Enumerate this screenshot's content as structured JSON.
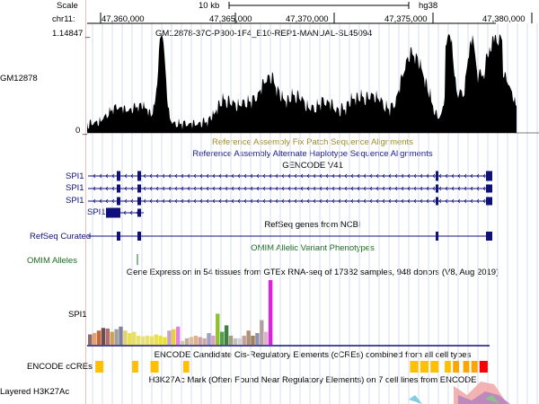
{
  "ruler": {
    "scale_label": "Scale",
    "scale_bar_text": "10 kb",
    "assembly": "hg38",
    "chrom_label": "chr11:",
    "ticks": [
      {
        "label": "47,360,000"
      },
      {
        "label": "47,365,000"
      },
      {
        "label": "47,370,000"
      },
      {
        "label": "47,375,000"
      },
      {
        "label": "47,380,000"
      }
    ]
  },
  "signal_track": {
    "max_label": "1.14847 _",
    "zero_label": "0 _",
    "name": "GM12878",
    "title": "GM12878-37C-P300-1F4_E10-REP1-MANUAL-SL45094",
    "color": "#000000"
  },
  "patch_tracks": {
    "fix_patch_title": "Reference Assembly Fix Patch Sequence Alignments",
    "alt_haplotype_title": "Reference Assembly Alternate Haplotype Sequence Alignments",
    "fix_patch_color": "#a08a2a",
    "alt_color": "#1a1a8c"
  },
  "gencode": {
    "title": "GENCODE V41",
    "transcript_labels": [
      "SPI1",
      "SPI1",
      "SPI1",
      "SPI1"
    ],
    "color": "#10107a"
  },
  "refseq": {
    "title": "RefSeq genes from NCBI",
    "track_label": "RefSeq Curated",
    "color": "#10107a"
  },
  "omim": {
    "title": "OMIM Allelic Variant Phenotypes",
    "track_label": "OMIM Alleles",
    "color": "#1f6b1f"
  },
  "gtex": {
    "title": "Gene Expression in 54 tissues from GTEx RNA-seq of 17382 samples, 948 donors (V8, Aug 2019)",
    "gene_label": "SPI1",
    "bars": [
      {
        "value": 0.16,
        "color": "#8c6c6c"
      },
      {
        "value": 0.18,
        "color": "#e8a06c"
      },
      {
        "value": 0.22,
        "color": "#c06a3c"
      },
      {
        "value": 0.26,
        "color": "#6c4c4c"
      },
      {
        "value": 0.25,
        "color": "#b07070"
      },
      {
        "value": 0.2,
        "color": "#d0a050"
      },
      {
        "value": 0.24,
        "color": "#a0a0a0"
      },
      {
        "value": 0.28,
        "color": "#8080a0"
      },
      {
        "value": 0.22,
        "color": "#e0d070"
      },
      {
        "value": 0.18,
        "color": "#e8e050"
      },
      {
        "value": 0.2,
        "color": "#e8e060"
      },
      {
        "value": 0.14,
        "color": "#e8e070"
      },
      {
        "value": 0.13,
        "color": "#e8e080"
      },
      {
        "value": 0.14,
        "color": "#e8e070"
      },
      {
        "value": 0.13,
        "color": "#e8e060"
      },
      {
        "value": 0.16,
        "color": "#e8e050"
      },
      {
        "value": 0.14,
        "color": "#e8e040"
      },
      {
        "value": 0.12,
        "color": "#e8e030"
      },
      {
        "value": 0.22,
        "color": "#c8a0c8"
      },
      {
        "value": 0.24,
        "color": "#e8d030"
      },
      {
        "value": 0.28,
        "color": "#e080e0"
      },
      {
        "value": 0.06,
        "color": "#d0c8b0"
      },
      {
        "value": 0.1,
        "color": "#c0b0a0"
      },
      {
        "value": 0.12,
        "color": "#d8c0a0"
      },
      {
        "value": 0.14,
        "color": "#e0b090"
      },
      {
        "value": 0.12,
        "color": "#d0a0a0"
      },
      {
        "value": 0.1,
        "color": "#c8a8a8"
      },
      {
        "value": 0.18,
        "color": "#a0a0c0"
      },
      {
        "value": 0.14,
        "color": "#e0a0c0"
      },
      {
        "value": 0.48,
        "color": "#90c030"
      },
      {
        "value": 0.2,
        "color": "#50a050"
      },
      {
        "value": 0.3,
        "color": "#408040"
      },
      {
        "value": 0.14,
        "color": "#a0a080"
      },
      {
        "value": 0.1,
        "color": "#c0c0c0"
      },
      {
        "value": 0.1,
        "color": "#d0d0d0"
      },
      {
        "value": 0.14,
        "color": "#c0a0a0"
      },
      {
        "value": 0.22,
        "color": "#b09070"
      },
      {
        "value": 0.14,
        "color": "#a08060"
      },
      {
        "value": 0.18,
        "color": "#9090b0"
      },
      {
        "value": 0.38,
        "color": "#b0a0a0"
      },
      {
        "value": 0.2,
        "color": "#e0b0d0"
      },
      {
        "value": 1.0,
        "color": "#e020e0"
      }
    ]
  },
  "encode_ccre": {
    "title": "ENCODE Candidate Cis-Regulatory Elements (cCREs) combined from all cell types",
    "track_label": "ENCODE cCREs",
    "elements": [
      {
        "start": 0.02,
        "end": 0.04,
        "color": "#ffc000"
      },
      {
        "start": 0.11,
        "end": 0.125,
        "color": "#ffc000"
      },
      {
        "start": 0.155,
        "end": 0.175,
        "color": "#ffc000"
      },
      {
        "start": 0.235,
        "end": 0.25,
        "color": "#ffc000"
      },
      {
        "start": 0.79,
        "end": 0.81,
        "color": "#ffc000"
      },
      {
        "start": 0.815,
        "end": 0.835,
        "color": "#ffc000"
      },
      {
        "start": 0.84,
        "end": 0.86,
        "color": "#ffc000"
      },
      {
        "start": 0.875,
        "end": 0.89,
        "color": "#ffc000"
      },
      {
        "start": 0.895,
        "end": 0.91,
        "color": "#ffa500"
      },
      {
        "start": 0.92,
        "end": 0.935,
        "color": "#ffa500"
      },
      {
        "start": 0.94,
        "end": 0.955,
        "color": "#ffa500"
      },
      {
        "start": 0.96,
        "end": 0.98,
        "color": "#ff0000"
      }
    ]
  },
  "h3k27ac": {
    "title": "H3K27Ac Mark (Often Found Near Regulatory Elements) on 7 cell lines from ENCODE",
    "track_label": "Layered H3K27Ac"
  }
}
